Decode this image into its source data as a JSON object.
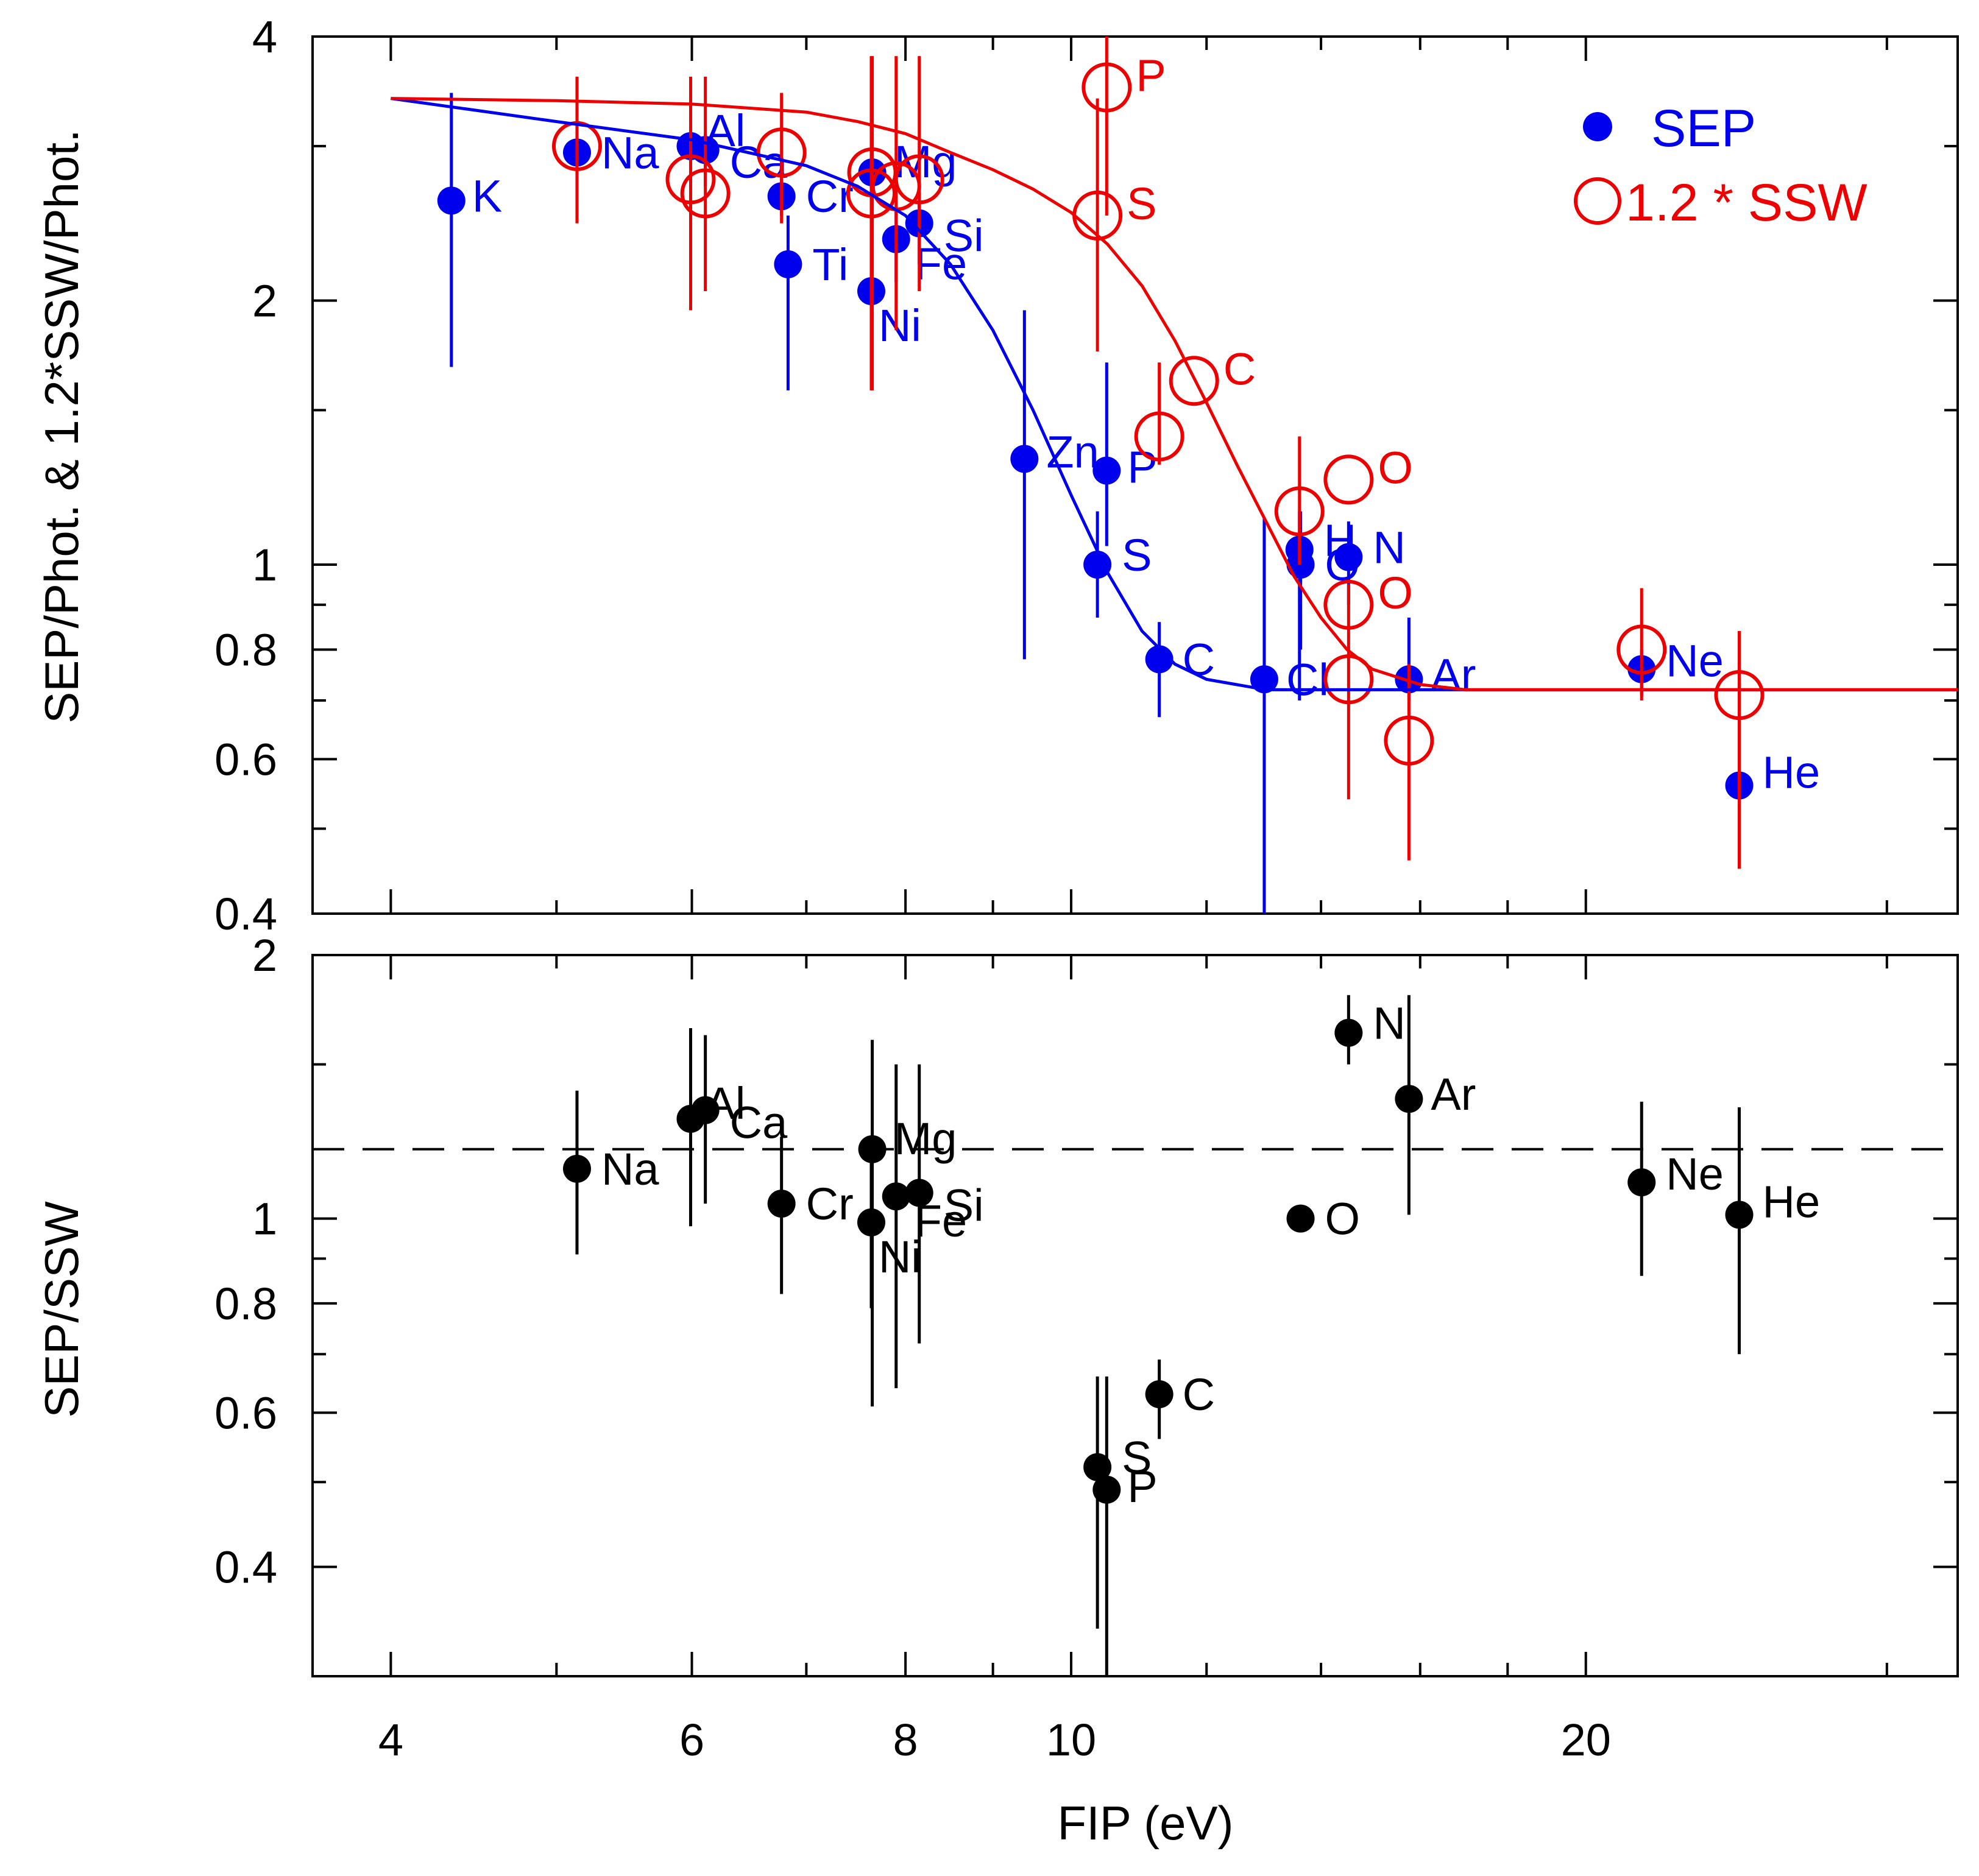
{
  "chart_data": [
    {
      "type": "scatter",
      "panel": "top",
      "ylabel": "SEP/Phot. & 1.2*SSW/Phot.",
      "xlabel": "",
      "x_scale": "log",
      "y_scale": "log",
      "xlim": [
        3.6,
        33
      ],
      "ylim": [
        0.4,
        4
      ],
      "y_ticks": [
        {
          "v": 0.4,
          "label": "0.4"
        },
        {
          "v": 0.6,
          "label": "0.6"
        },
        {
          "v": 0.8,
          "label": "0.8"
        },
        {
          "v": 1,
          "label": "1"
        },
        {
          "v": 2,
          "label": "2"
        },
        {
          "v": 4,
          "label": "4"
        }
      ],
      "y_minor_ticks": [
        0.5,
        0.7,
        0.9,
        1.5,
        3
      ],
      "x_ticks": [
        4,
        6,
        8,
        10,
        20
      ],
      "x_minor_ticks": [
        5,
        7,
        9,
        12,
        14,
        16,
        18,
        30
      ],
      "colors": {
        "sep": "#0000ee",
        "ssw": "#ee0000"
      },
      "legend": {
        "position": "top-right",
        "entries": [
          {
            "name": "SEP",
            "marker": "filled-circle",
            "color": "#0000ee"
          },
          {
            "name": "1.2 * SSW",
            "marker": "open-circle",
            "color": "#ee0000"
          }
        ]
      },
      "series": [
        {
          "name": "SEP",
          "points": [
            {
              "label": "K",
              "x": 4.34,
              "y": 2.6,
              "lo": 1.68,
              "hi": 3.45
            },
            {
              "label": "Na",
              "x": 5.14,
              "y": 2.95,
              "lo": 2.6,
              "hi": 3.2
            },
            {
              "label": "Al",
              "x": 5.99,
              "y": 3.0,
              "lo": 2.7,
              "hi": 3.2
            },
            {
              "label": "Ca",
              "x": 6.11,
              "y": 2.97,
              "lo": 2.7,
              "hi": 3.1
            },
            {
              "label": "Cr",
              "x": 6.77,
              "y": 2.63,
              "lo": 2.5,
              "hi": 2.8
            },
            {
              "label": "Ti",
              "x": 6.83,
              "y": 2.2,
              "lo": 1.58,
              "hi": 2.5
            },
            {
              "label": "Mg",
              "x": 7.65,
              "y": 2.8,
              "lo": 2.55,
              "hi": 3.0
            },
            {
              "label": "Ni",
              "x": 7.64,
              "y": 2.05,
              "lo": 1.75,
              "hi": 2.2
            },
            {
              "label": "Fe",
              "x": 7.9,
              "y": 2.35,
              "lo": 2.1,
              "hi": 2.55
            },
            {
              "label": "Si",
              "x": 8.15,
              "y": 2.45,
              "lo": 2.2,
              "hi": 2.65
            },
            {
              "label": "Zn",
              "x": 9.39,
              "y": 1.32,
              "lo": 0.78,
              "hi": 1.95
            },
            {
              "label": "P",
              "x": 10.49,
              "y": 1.28,
              "lo": 1.05,
              "hi": 1.7
            },
            {
              "label": "S",
              "x": 10.36,
              "y": 1.0,
              "lo": 0.87,
              "hi": 1.15
            },
            {
              "label": "C",
              "x": 11.26,
              "y": 0.78,
              "lo": 0.67,
              "hi": 0.86
            },
            {
              "label": "Cl",
              "x": 12.97,
              "y": 0.74,
              "lo": 0.4,
              "hi": 1.13
            },
            {
              "label": "H",
              "x": 13.6,
              "y": 1.04,
              "lo": 0.7,
              "hi": 1.15
            },
            {
              "label": "O",
              "x": 13.62,
              "y": 1.0,
              "lo": 0.8,
              "hi": 1.15
            },
            {
              "label": "N",
              "x": 14.53,
              "y": 1.02,
              "lo": 0.9,
              "hi": 1.12
            },
            {
              "label": "Ar",
              "x": 15.76,
              "y": 0.74,
              "lo": 0.7,
              "hi": 0.87
            },
            {
              "label": "Ne",
              "x": 21.56,
              "y": 0.76,
              "lo": 0.71,
              "hi": 0.8
            },
            {
              "label": "He",
              "x": 24.59,
              "y": 0.56,
              "lo": 0.56,
              "hi": 0.56
            }
          ]
        },
        {
          "name": "1.2 * SSW",
          "points": [
            {
              "label": "",
              "x": 5.14,
              "y": 3.0,
              "lo": 2.45,
              "hi": 3.6
            },
            {
              "label": "",
              "x": 5.99,
              "y": 2.75,
              "lo": 1.95,
              "hi": 3.6
            },
            {
              "label": "",
              "x": 6.11,
              "y": 2.65,
              "lo": 2.05,
              "hi": 3.6
            },
            {
              "label": "",
              "x": 6.77,
              "y": 2.95,
              "lo": 2.45,
              "hi": 3.45
            },
            {
              "label": "",
              "x": 7.65,
              "y": 2.8,
              "lo": 1.58,
              "hi": 3.8
            },
            {
              "label": "",
              "x": 7.64,
              "y": 2.65,
              "lo": 1.58,
              "hi": 3.8
            },
            {
              "label": "",
              "x": 7.9,
              "y": 2.7,
              "lo": 1.85,
              "hi": 3.8
            },
            {
              "label": "",
              "x": 8.15,
              "y": 2.75,
              "lo": 2.05,
              "hi": 3.8
            },
            {
              "label": "P",
              "x": 10.49,
              "y": 3.5,
              "lo": 2.5,
              "hi": 4.0
            },
            {
              "label": "S",
              "x": 10.36,
              "y": 2.5,
              "lo": 1.75,
              "hi": 3.4
            },
            {
              "label": "",
              "x": 11.26,
              "y": 1.4,
              "lo": 1.3,
              "hi": 1.7
            },
            {
              "label": "C",
              "x": 11.8,
              "y": 1.62,
              "lo": 1.62,
              "hi": 1.62
            },
            {
              "label": "",
              "x": 13.6,
              "y": 1.15,
              "lo": 1.0,
              "hi": 1.4
            },
            {
              "label": "O",
              "x": 14.53,
              "y": 1.25,
              "lo": 1.25,
              "hi": 1.25
            },
            {
              "label": "O",
              "x": 14.53,
              "y": 0.9,
              "lo": 0.9,
              "hi": 0.9
            },
            {
              "label": "",
              "x": 14.53,
              "y": 0.74,
              "lo": 0.54,
              "hi": 0.95
            },
            {
              "label": "",
              "x": 15.76,
              "y": 0.63,
              "lo": 0.46,
              "hi": 0.77
            },
            {
              "label": "",
              "x": 21.56,
              "y": 0.8,
              "lo": 0.7,
              "hi": 0.94
            },
            {
              "label": "",
              "x": 24.59,
              "y": 0.71,
              "lo": 0.45,
              "hi": 0.84
            }
          ]
        },
        {
          "name": "SEP fit",
          "line": true,
          "x": [
            4.0,
            5.0,
            6.0,
            7.0,
            7.5,
            8.0,
            8.5,
            9.0,
            9.5,
            10.0,
            10.5,
            11.0,
            11.5,
            12.0,
            13.0,
            14.0,
            16.0,
            18.0,
            33.0
          ],
          "y": [
            3.4,
            3.2,
            3.05,
            2.85,
            2.7,
            2.5,
            2.2,
            1.85,
            1.5,
            1.2,
            0.98,
            0.84,
            0.77,
            0.74,
            0.72,
            0.72,
            0.72,
            0.72,
            0.72
          ]
        },
        {
          "name": "SSW fit",
          "line": true,
          "x": [
            4.0,
            5.0,
            6.0,
            7.0,
            7.5,
            8.0,
            8.5,
            9.0,
            9.5,
            10.0,
            10.5,
            11.0,
            11.5,
            12.0,
            12.5,
            13.0,
            13.5,
            14.0,
            14.5,
            15.0,
            16.0,
            17.0,
            18.0,
            33.0
          ],
          "y": [
            3.4,
            3.38,
            3.35,
            3.28,
            3.2,
            3.1,
            2.95,
            2.82,
            2.68,
            2.52,
            2.32,
            2.08,
            1.8,
            1.53,
            1.3,
            1.12,
            0.97,
            0.87,
            0.8,
            0.76,
            0.73,
            0.72,
            0.72,
            0.72
          ]
        }
      ]
    },
    {
      "type": "scatter",
      "panel": "bottom",
      "ylabel": "SEP/SSW",
      "xlabel": "FIP (eV)",
      "x_scale": "log",
      "y_scale": "log",
      "xlim": [
        3.6,
        33
      ],
      "ylim": [
        0.3,
        2
      ],
      "y_ticks": [
        {
          "v": 0.4,
          "label": "0.4"
        },
        {
          "v": 0.6,
          "label": "0.6"
        },
        {
          "v": 0.8,
          "label": "0.8"
        },
        {
          "v": 1,
          "label": "1"
        },
        {
          "v": 2,
          "label": "2"
        }
      ],
      "y_minor_ticks": [
        0.5,
        0.7,
        0.9,
        1.5
      ],
      "x_ticks": [
        4,
        6,
        8,
        10,
        20
      ],
      "x_tick_labels": [
        "4",
        "6",
        "8",
        "10",
        "20"
      ],
      "x_minor_ticks": [
        5,
        7,
        9,
        12,
        14,
        16,
        18,
        30
      ],
      "reference_line": {
        "y": 1.2,
        "style": "dashed"
      },
      "series": [
        {
          "name": "SEP/SSW",
          "color": "#000000",
          "points": [
            {
              "label": "Na",
              "x": 5.14,
              "y": 1.14,
              "lo": 0.91,
              "hi": 1.4
            },
            {
              "label": "Al",
              "x": 5.99,
              "y": 1.3,
              "lo": 0.98,
              "hi": 1.65
            },
            {
              "label": "Ca",
              "x": 6.11,
              "y": 1.33,
              "lo": 1.04,
              "hi": 1.62
            },
            {
              "label": "Cr",
              "x": 6.77,
              "y": 1.04,
              "lo": 0.82,
              "hi": 1.24
            },
            {
              "label": "Mg",
              "x": 7.65,
              "y": 1.2,
              "lo": 0.61,
              "hi": 1.6
            },
            {
              "label": "Ni",
              "x": 7.64,
              "y": 0.99,
              "lo": 0.79,
              "hi": 1.2
            },
            {
              "label": "Fe",
              "x": 7.9,
              "y": 1.06,
              "lo": 0.64,
              "hi": 1.5
            },
            {
              "label": "Si",
              "x": 8.15,
              "y": 1.07,
              "lo": 0.72,
              "hi": 1.5
            },
            {
              "label": "S",
              "x": 10.36,
              "y": 0.52,
              "lo": 0.34,
              "hi": 0.66
            },
            {
              "label": "P",
              "x": 10.49,
              "y": 0.49,
              "lo": 0.3,
              "hi": 0.66
            },
            {
              "label": "C",
              "x": 11.26,
              "y": 0.63,
              "lo": 0.56,
              "hi": 0.69
            },
            {
              "label": "O",
              "x": 13.62,
              "y": 1.0,
              "lo": 1.0,
              "hi": 1.0
            },
            {
              "label": "N",
              "x": 14.53,
              "y": 1.63,
              "lo": 1.5,
              "hi": 1.8
            },
            {
              "label": "Ar",
              "x": 15.76,
              "y": 1.37,
              "lo": 1.01,
              "hi": 1.8
            },
            {
              "label": "Ne",
              "x": 21.56,
              "y": 1.1,
              "lo": 0.86,
              "hi": 1.36
            },
            {
              "label": "He",
              "x": 24.59,
              "y": 1.01,
              "lo": 0.7,
              "hi": 1.34
            }
          ]
        }
      ]
    }
  ]
}
